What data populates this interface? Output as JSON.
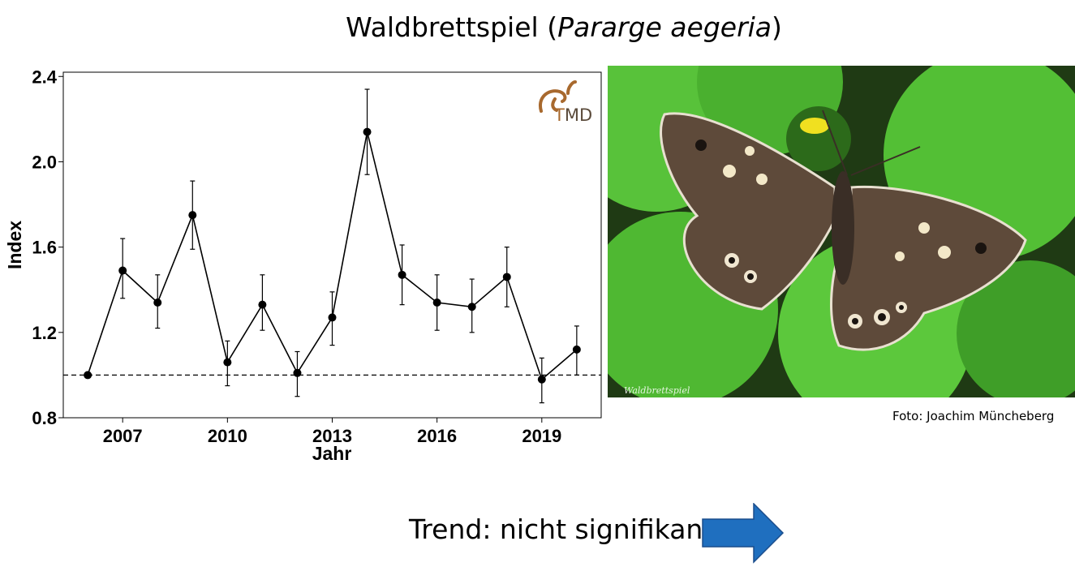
{
  "title": {
    "main": "Waldbrettspiel (",
    "species": "Pararge aegeria",
    "close": ")"
  },
  "chart_data": {
    "type": "line",
    "xlabel": "Jahr",
    "ylabel": "Index",
    "x_ticks": [
      2007,
      2010,
      2013,
      2016,
      2019
    ],
    "y_ticks": [
      "0.8",
      "1.2",
      "1.6",
      "2.0",
      "2.4"
    ],
    "xlim": [
      2005.3,
      2020.7
    ],
    "ylim": [
      0.8,
      2.42
    ],
    "reference_line": 1.0,
    "x": [
      2006,
      2007,
      2008,
      2009,
      2010,
      2011,
      2012,
      2013,
      2014,
      2015,
      2016,
      2017,
      2018,
      2019,
      2020
    ],
    "y": [
      1.0,
      1.49,
      1.34,
      1.75,
      1.06,
      1.33,
      1.01,
      1.27,
      2.14,
      1.47,
      1.34,
      1.32,
      1.46,
      0.98,
      1.12
    ],
    "err_low": [
      1.0,
      1.36,
      1.22,
      1.59,
      0.95,
      1.21,
      0.9,
      1.14,
      1.94,
      1.33,
      1.21,
      1.2,
      1.32,
      0.87,
      1.0
    ],
    "err_high": [
      1.0,
      1.64,
      1.47,
      1.91,
      1.16,
      1.47,
      1.11,
      1.39,
      2.34,
      1.61,
      1.47,
      1.45,
      1.6,
      1.08,
      1.23
    ],
    "grid": false
  },
  "logo": {
    "text_t": "T",
    "text_m": "M",
    "text_d": "D"
  },
  "photo": {
    "watermark": "Waldbrettspiel"
  },
  "credit": "Foto: Joachim Müncheberg",
  "trend": {
    "label": "Trend: nicht signifikant",
    "arrow_color": "#1f6fbf"
  }
}
